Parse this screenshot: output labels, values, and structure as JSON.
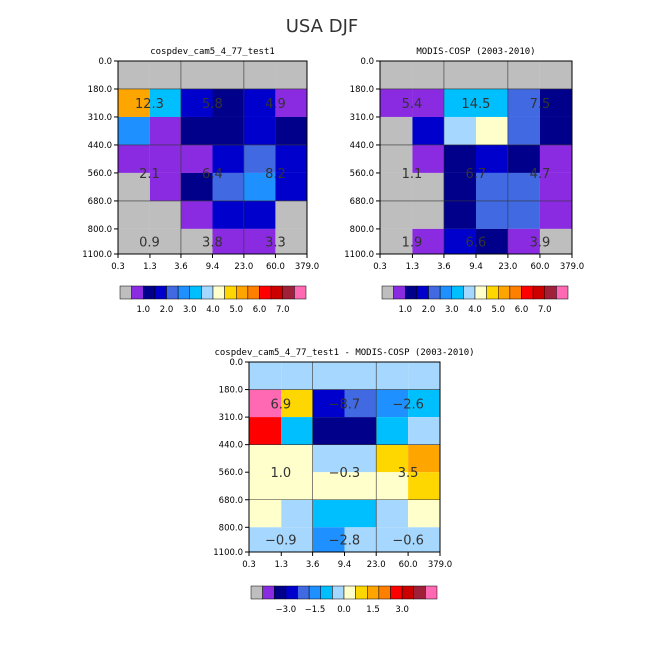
{
  "figure": {
    "title": "USA DJF"
  },
  "chart_data": [
    {
      "type": "heatmap",
      "title": "cospdev_cam5_4_77_test1",
      "x_ticks": [
        "0.3",
        "1.3",
        "3.6",
        "9.4",
        "23.0",
        "60.0",
        "379.0"
      ],
      "y_ticks": [
        "0.0",
        "180.0",
        "310.0",
        "440.0",
        "560.0",
        "680.0",
        "800.0",
        "1100.0"
      ],
      "colors": [
        [
          "#bebebe",
          "#bebebe",
          "#bebebe",
          "#bebebe",
          "#bebebe",
          "#bebebe"
        ],
        [
          "#ffa500",
          "#00bfff",
          "#0000cd",
          "#00008b",
          "#0000cd",
          "#8a2be2"
        ],
        [
          "#1e90ff",
          "#8a2be2",
          "#00008b",
          "#00008b",
          "#0000cd",
          "#00008b"
        ],
        [
          "#8a2be2",
          "#8a2be2",
          "#8a2be2",
          "#0000cd",
          "#4169e1",
          "#0000cd"
        ],
        [
          "#bebebe",
          "#8a2be2",
          "#00008b",
          "#4169e1",
          "#1e90ff",
          "#0000cd"
        ],
        [
          "#bebebe",
          "#bebebe",
          "#8a2be2",
          "#0000cd",
          "#0000cd",
          "#bebebe"
        ],
        [
          "#bebebe",
          "#bebebe",
          "#bebebe",
          "#8a2be2",
          "#8a2be2",
          "#bebebe"
        ]
      ],
      "annotations": [
        {
          "col": 0,
          "row": 1,
          "text": "12.3"
        },
        {
          "col": 2,
          "row": 1,
          "text": "5.8"
        },
        {
          "col": 4,
          "row": 1,
          "text": "4.9"
        },
        {
          "col": 0,
          "row": 4,
          "text": "2.1"
        },
        {
          "col": 2,
          "row": 4,
          "text": "6.4"
        },
        {
          "col": 4,
          "row": 4,
          "text": "8.2"
        },
        {
          "col": 0,
          "row": 6,
          "text": "0.9"
        },
        {
          "col": 2,
          "row": 6,
          "text": "3.8"
        },
        {
          "col": 4,
          "row": 6,
          "text": "3.3"
        }
      ],
      "legend": {
        "colors": [
          "#bebebe",
          "#8a2be2",
          "#00008b",
          "#0000cd",
          "#4169e1",
          "#1e90ff",
          "#00bfff",
          "#a6d8ff",
          "#ffffcc",
          "#ffd700",
          "#ffa500",
          "#ff7f00",
          "#ff0000",
          "#cd0000",
          "#a0203a",
          "#ff69b4"
        ],
        "labels": [
          "1.0",
          "2.0",
          "3.0",
          "4.0",
          "5.0",
          "6.0",
          "7.0"
        ]
      }
    },
    {
      "type": "heatmap",
      "title": "MODIS-COSP (2003-2010)",
      "x_ticks": [
        "0.3",
        "1.3",
        "3.6",
        "9.4",
        "23.0",
        "60.0",
        "379.0"
      ],
      "y_ticks": [
        "0.0",
        "180.0",
        "310.0",
        "440.0",
        "560.0",
        "680.0",
        "800.0",
        "1100.0"
      ],
      "colors": [
        [
          "#bebebe",
          "#bebebe",
          "#bebebe",
          "#bebebe",
          "#bebebe",
          "#bebebe"
        ],
        [
          "#8a2be2",
          "#8a2be2",
          "#00bfff",
          "#00bfff",
          "#4169e1",
          "#00008b"
        ],
        [
          "#bebebe",
          "#0000cd",
          "#a6d8ff",
          "#ffffcc",
          "#4169e1",
          "#00008b"
        ],
        [
          "#bebebe",
          "#8a2be2",
          "#00008b",
          "#0000cd",
          "#00008b",
          "#8a2be2"
        ],
        [
          "#bebebe",
          "#bebebe",
          "#00008b",
          "#4169e1",
          "#4169e1",
          "#8a2be2"
        ],
        [
          "#bebebe",
          "#bebebe",
          "#00008b",
          "#4169e1",
          "#4169e1",
          "#8a2be2"
        ],
        [
          "#bebebe",
          "#8a2be2",
          "#0000cd",
          "#00008b",
          "#8a2be2",
          "#bebebe"
        ]
      ],
      "annotations": [
        {
          "col": 0,
          "row": 1,
          "text": "5.4"
        },
        {
          "col": 2,
          "row": 1,
          "text": "14.5"
        },
        {
          "col": 4,
          "row": 1,
          "text": "7.5"
        },
        {
          "col": 0,
          "row": 4,
          "text": "1.1"
        },
        {
          "col": 2,
          "row": 4,
          "text": "6.7"
        },
        {
          "col": 4,
          "row": 4,
          "text": "4.7"
        },
        {
          "col": 0,
          "row": 6,
          "text": "1.9"
        },
        {
          "col": 2,
          "row": 6,
          "text": "6.6"
        },
        {
          "col": 4,
          "row": 6,
          "text": "3.9"
        }
      ],
      "legend": {
        "colors": [
          "#bebebe",
          "#8a2be2",
          "#00008b",
          "#0000cd",
          "#4169e1",
          "#1e90ff",
          "#00bfff",
          "#a6d8ff",
          "#ffffcc",
          "#ffd700",
          "#ffa500",
          "#ff7f00",
          "#ff0000",
          "#cd0000",
          "#a0203a",
          "#ff69b4"
        ],
        "labels": [
          "1.0",
          "2.0",
          "3.0",
          "4.0",
          "5.0",
          "6.0",
          "7.0"
        ]
      }
    },
    {
      "type": "heatmap",
      "title": "cospdev_cam5_4_77_test1 - MODIS-COSP (2003-2010)",
      "x_ticks": [
        "0.3",
        "1.3",
        "3.6",
        "9.4",
        "23.0",
        "60.0",
        "379.0"
      ],
      "y_ticks": [
        "0.0",
        "180.0",
        "310.0",
        "440.0",
        "560.0",
        "680.0",
        "800.0",
        "1100.0"
      ],
      "colors": [
        [
          "#a6d8ff",
          "#a6d8ff",
          "#a6d8ff",
          "#a6d8ff",
          "#a6d8ff",
          "#a6d8ff"
        ],
        [
          "#ff69b4",
          "#ffd700",
          "#0000cd",
          "#4169e1",
          "#1e90ff",
          "#00bfff"
        ],
        [
          "#ff0000",
          "#00bfff",
          "#00008b",
          "#00008b",
          "#00bfff",
          "#a6d8ff"
        ],
        [
          "#ffffcc",
          "#ffffcc",
          "#a6d8ff",
          "#a6d8ff",
          "#ffd700",
          "#ffa500"
        ],
        [
          "#ffffcc",
          "#ffffcc",
          "#ffffcc",
          "#ffffcc",
          "#ffffcc",
          "#ffd700"
        ],
        [
          "#ffffcc",
          "#a6d8ff",
          "#00bfff",
          "#00bfff",
          "#a6d8ff",
          "#ffffcc"
        ],
        [
          "#a6d8ff",
          "#a6d8ff",
          "#1e90ff",
          "#a6d8ff",
          "#a6d8ff",
          "#a6d8ff"
        ]
      ],
      "annotations": [
        {
          "col": 0,
          "row": 1,
          "text": "6.9"
        },
        {
          "col": 2,
          "row": 1,
          "text": "−8.7"
        },
        {
          "col": 4,
          "row": 1,
          "text": "−2.6"
        },
        {
          "col": 0,
          "row": 4,
          "text": "1.0"
        },
        {
          "col": 2,
          "row": 4,
          "text": "−0.3"
        },
        {
          "col": 4,
          "row": 4,
          "text": "3.5"
        },
        {
          "col": 0,
          "row": 6,
          "text": "−0.9"
        },
        {
          "col": 2,
          "row": 6,
          "text": "−2.8"
        },
        {
          "col": 4,
          "row": 6,
          "text": "−0.6"
        }
      ],
      "legend": {
        "colors": [
          "#bebebe",
          "#8a2be2",
          "#00008b",
          "#0000cd",
          "#4169e1",
          "#1e90ff",
          "#00bfff",
          "#a6d8ff",
          "#ffffcc",
          "#ffd700",
          "#ffa500",
          "#ff7f00",
          "#ff0000",
          "#cd0000",
          "#a0203a",
          "#ff69b4"
        ],
        "labels": [
          "−3.0",
          "−1.5",
          "0.0",
          "1.5",
          "3.0"
        ]
      }
    }
  ]
}
